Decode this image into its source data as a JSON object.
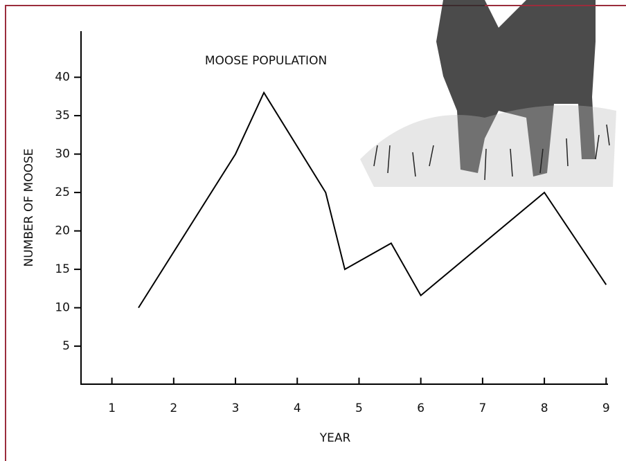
{
  "chart_data": {
    "type": "line",
    "title": "MOOSE POPULATION",
    "xlabel": "YEAR",
    "ylabel": "NUMBER OF MOOSE",
    "x": [
      1.43,
      3,
      3.46,
      4.46,
      4.77,
      5.52,
      6,
      8,
      9
    ],
    "values": [
      10,
      30,
      38,
      25,
      15,
      18.4,
      11.6,
      25,
      13
    ],
    "color": "#000000",
    "xlim": [
      0.5,
      9.03
    ],
    "ylim": [
      0,
      46
    ],
    "xticks": [
      1,
      2,
      3,
      4,
      5,
      6,
      7,
      8,
      9
    ],
    "yticks": [
      5,
      10,
      15,
      20,
      25,
      30,
      35,
      40
    ]
  }
}
